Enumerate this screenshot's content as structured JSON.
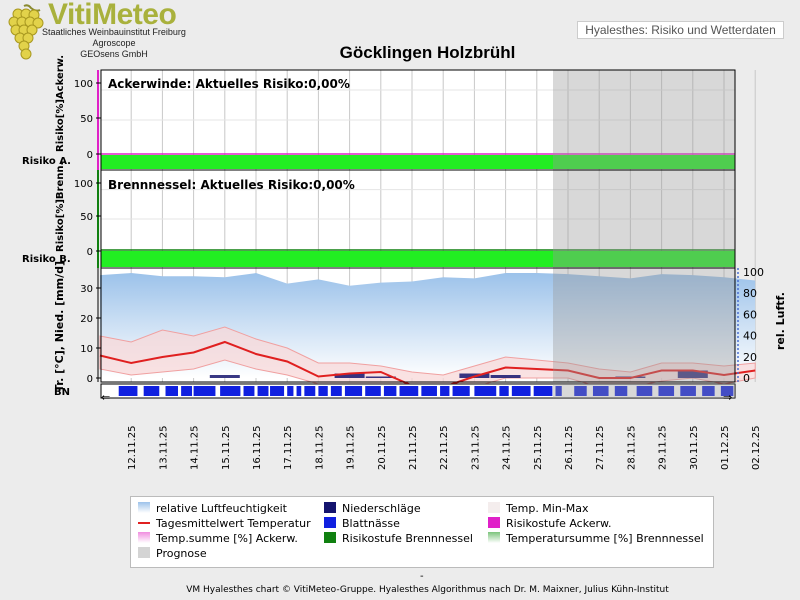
{
  "logo": {
    "title": "VitiMeteo",
    "line1": "Staatliches Weinbauinstitut Freiburg",
    "line2": "Agroscope",
    "line3": "GEOsens GmbH"
  },
  "header_label": "Hyalesthes: Risiko und Wetterdaten",
  "title": "Göcklingen Holzbrühl",
  "panels": {
    "ackerwinde": {
      "title": "Ackerwinde: Aktuelles Risiko:0,00%",
      "ylabel": "Risiko[%]Ackerw.",
      "row_label": "Risiko A.",
      "ticks": [
        "100",
        "50",
        "0"
      ]
    },
    "brennnessel": {
      "title": "Brennnessel: Aktuelles Risiko:0,00%",
      "ylabel": "Risiko[%]Brenn.",
      "row_label": "Risiko B.",
      "ticks": [
        "100",
        "50",
        "0"
      ]
    },
    "weather": {
      "ylabel_left": "Tr. [°C], Nied. [mm/d]",
      "ylabel_right": "rel. Luftf.",
      "ticks_left": [
        "30",
        "20",
        "10",
        "0"
      ],
      "ticks_right": [
        "100",
        "80",
        "60",
        "40",
        "20",
        "0"
      ],
      "bn_label": "BN"
    }
  },
  "chart_data": [
    {
      "type": "area",
      "name": "Ackerwinde risk",
      "title": "Ackerwinde: Aktuelles Risiko:0,00%",
      "ylabel": "Risiko[%]Ackerw.",
      "ylim": [
        0,
        100
      ],
      "categories": [
        "12.11.25",
        "13.11.25",
        "14.11.25",
        "15.11.25",
        "16.11.25",
        "17.11.25",
        "18.11.25",
        "19.11.25",
        "20.11.25",
        "21.11.25",
        "22.11.25",
        "23.11.25",
        "24.11.25",
        "25.11.25",
        "26.11.25",
        "27.11.25",
        "28.11.25",
        "29.11.25",
        "30.11.25",
        "01.12.25",
        "02.12.25"
      ],
      "values": [
        0,
        0,
        0,
        0,
        0,
        0,
        0,
        0,
        0,
        0,
        0,
        0,
        0,
        0,
        0,
        0,
        0,
        0,
        0,
        0,
        0
      ],
      "forecast_from": "26.11.25"
    },
    {
      "type": "area",
      "name": "Brennnessel risk",
      "title": "Brennnessel: Aktuelles Risiko:0,00%",
      "ylabel": "Risiko[%]Brenn.",
      "ylim": [
        0,
        100
      ],
      "categories": [
        "12.11.25",
        "13.11.25",
        "14.11.25",
        "15.11.25",
        "16.11.25",
        "17.11.25",
        "18.11.25",
        "19.11.25",
        "20.11.25",
        "21.11.25",
        "22.11.25",
        "23.11.25",
        "24.11.25",
        "25.11.25",
        "26.11.25",
        "27.11.25",
        "28.11.25",
        "29.11.25",
        "30.11.25",
        "01.12.25",
        "02.12.25"
      ],
      "values": [
        0,
        0,
        0,
        0,
        0,
        0,
        0,
        0,
        0,
        0,
        0,
        0,
        0,
        0,
        0,
        0,
        0,
        0,
        0,
        0,
        0
      ],
      "forecast_from": "26.11.25"
    },
    {
      "type": "line",
      "ylabel": "Tr. [°C], Nied. [mm/d]",
      "y2label": "rel. Luftf.",
      "ylim": [
        -3,
        37
      ],
      "y2lim": [
        -4,
        100
      ],
      "x": [
        "11.11.25",
        "12.11.25",
        "13.11.25",
        "14.11.25",
        "15.11.25",
        "16.11.25",
        "17.11.25",
        "18.11.25",
        "19.11.25",
        "20.11.25",
        "21.11.25",
        "22.11.25",
        "23.11.25",
        "24.11.25",
        "25.11.25",
        "26.11.25",
        "27.11.25",
        "28.11.25",
        "29.11.25",
        "30.11.25",
        "01.12.25",
        "02.12.25"
      ],
      "series": [
        {
          "name": "relative Luftfeuchtigkeit",
          "axis": "right",
          "values": [
            97,
            99,
            96,
            96,
            95,
            99,
            89,
            93,
            87,
            90,
            91,
            95,
            94,
            99,
            99,
            98,
            96,
            94,
            98,
            97,
            95,
            92
          ]
        },
        {
          "name": "Tagesmittelwert Temperatur",
          "values": [
            7.5,
            5,
            7,
            8.5,
            12,
            8,
            5.5,
            0.5,
            1.5,
            2,
            -2.5,
            -3,
            0.5,
            3.5,
            3,
            2.5,
            0,
            0,
            2.5,
            2.5,
            1,
            2.5
          ]
        },
        {
          "name": "Temp. Min-Max",
          "values_min": [
            3,
            1,
            2,
            3,
            6,
            3,
            1,
            -2,
            -2,
            -2,
            -6,
            -5,
            -3,
            0,
            0,
            0,
            -3,
            -3,
            -1,
            0,
            -2,
            0
          ],
          "values_max": [
            14,
            12,
            16,
            14,
            17,
            13,
            10,
            5,
            5,
            4,
            2,
            1,
            4,
            7,
            6,
            5,
            3,
            2,
            5,
            5,
            4,
            5
          ]
        },
        {
          "name": "Niederschläge",
          "x": [
            "15.11.25",
            "19.11.25",
            "20.11.25",
            "23.11.25",
            "24.11.25",
            "28.11.25",
            "30.11.25"
          ],
          "values": [
            1,
            1.5,
            0.5,
            1.5,
            1,
            0.5,
            2.5
          ]
        }
      ],
      "forecast_from": "26.11.25"
    }
  ],
  "legend": [
    {
      "label": "relative Luftfeuchtigkeit",
      "color": "#a8c8ea"
    },
    {
      "label": "Niederschläge",
      "color": "#14146e"
    },
    {
      "label": "Temp. Min-Max",
      "color": "#f4eded"
    },
    {
      "label": "Tagesmittelwert Temperatur",
      "color": "#e02020"
    },
    {
      "label": "Blattnässe",
      "color": "#1020e0"
    },
    {
      "label": "Risikostufe Ackerw.",
      "color": "#e020c8"
    },
    {
      "label": "Temp.summe [%] Ackerw.",
      "color": "#f4a8e8"
    },
    {
      "label": "Risikostufe Brennnessel",
      "color": "#108010"
    },
    {
      "label": "Temperatursumme [%] Brennnessel",
      "color": "#9ad09a"
    },
    {
      "label": "Prognose",
      "color": "#d4d4d4"
    }
  ],
  "footer_dash": "-",
  "footer": "VM Hyalesthes chart © VitiMeteo-Gruppe. Hyalesthes Algorithmus nach Dr. M. Maixner, Julius Kühn-Institut"
}
